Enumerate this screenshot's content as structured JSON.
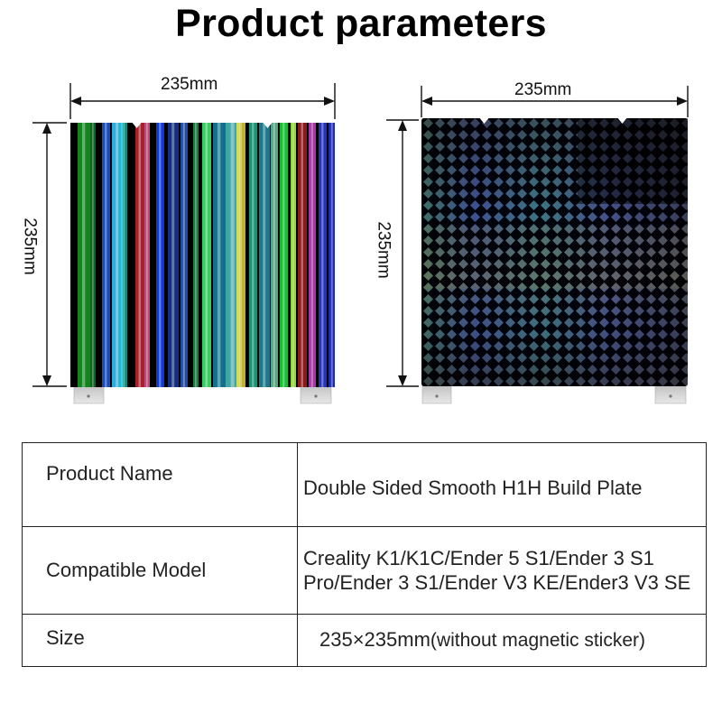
{
  "title": "Product parameters",
  "dimensions": {
    "left_width": "235mm",
    "left_height": "235mm",
    "right_width": "235mm",
    "right_height": "235mm"
  },
  "images": {
    "left": "holographic-stripe-build-plate",
    "right": "holographic-diamond-build-plate"
  },
  "parameters": {
    "product_name_label": "Product Name",
    "product_name_value": "Double Sided Smooth H1H Build Plate",
    "compatible_label": "Compatible Model",
    "compatible_line1": "Creality K1/K1C/Ender 5 S1/Ender 3 S1",
    "compatible_line2": "Pro/Ender 3 S1/Ender V3 KE/Ender3 V3 SE",
    "size_label": "Size",
    "size_value": "235×235mm",
    "size_note": "(without magnetic sticker)"
  },
  "colors": {
    "background": "#ffffff",
    "text": "#111111",
    "border": "#222222",
    "tab_metal": "#d8d8d8"
  }
}
